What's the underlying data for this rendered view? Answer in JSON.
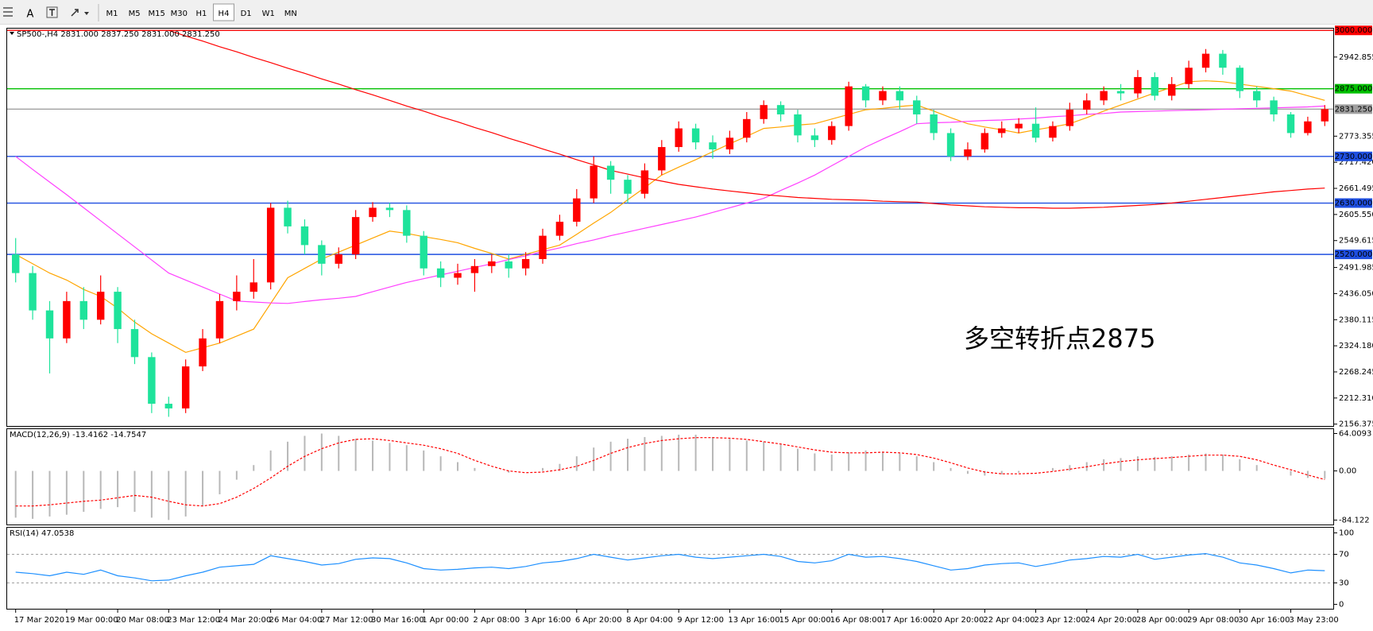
{
  "toolbar": {
    "tools": [
      "A"
    ],
    "timeframes": [
      "M1",
      "M5",
      "M15",
      "M30",
      "H1",
      "H4",
      "D1",
      "W1",
      "MN"
    ],
    "active_timeframe": "H4"
  },
  "chart_data": [
    {
      "type": "candlestick",
      "title": "SP500-,H4  2831.000 2837.250 2831.000 2831.250",
      "annotation": "多空转折点2875",
      "annotation_color": "#ff0000",
      "up_color": "#ff0000",
      "down_color": "#1ee39b",
      "categories": [
        "17 Mar 2020",
        null,
        null,
        "19 Mar 00:00",
        null,
        null,
        "20 Mar 08:00",
        null,
        null,
        "23 Mar 12:00",
        null,
        null,
        "24 Mar 20:00",
        null,
        null,
        "26 Mar 04:00",
        null,
        null,
        "27 Mar 12:00",
        null,
        null,
        "30 Mar 16:00",
        null,
        null,
        "1 Apr 00:00",
        null,
        null,
        "2 Apr 08:00",
        null,
        null,
        "3 Apr 16:00",
        null,
        null,
        "6 Apr 20:00",
        null,
        null,
        "8 Apr 04:00",
        null,
        null,
        "9 Apr 12:00",
        null,
        null,
        "13 Apr 16:00",
        null,
        null,
        "15 Apr 00:00",
        null,
        null,
        "16 Apr 08:00",
        null,
        null,
        "17 Apr 16:00",
        null,
        null,
        "20 Apr 20:00",
        null,
        null,
        "22 Apr 04:00",
        null,
        null,
        "23 Apr 12:00",
        null,
        null,
        "24 Apr 20:00",
        null,
        null,
        "28 Apr 00:00",
        null,
        null,
        "29 Apr 08:00",
        null,
        null,
        "30 Apr 16:00",
        null,
        null,
        "3 May 23:00",
        null,
        null
      ],
      "open": [
        2520,
        2480,
        2400,
        2340,
        2420,
        2380,
        2440,
        2360,
        2300,
        2200,
        2190,
        2280,
        2340,
        2420,
        2440,
        2460,
        2620,
        2580,
        2540,
        2500,
        2520,
        2600,
        2620,
        2615,
        2560,
        2490,
        2470,
        2480,
        2495,
        2505,
        2490,
        2510,
        2560,
        2590,
        2640,
        2710,
        2680,
        2650,
        2700,
        2750,
        2790,
        2760,
        2745,
        2770,
        2810,
        2840,
        2820,
        2775,
        2765,
        2795,
        2880,
        2850,
        2870,
        2850,
        2820,
        2780,
        2730,
        2745,
        2780,
        2790,
        2800,
        2770,
        2795,
        2830,
        2850,
        2870,
        2865,
        2900,
        2860,
        2885,
        2920,
        2950,
        2920,
        2870,
        2850,
        2820,
        2780,
        2805
      ],
      "high": [
        2555,
        2495,
        2420,
        2440,
        2450,
        2475,
        2450,
        2380,
        2310,
        2215,
        2295,
        2360,
        2435,
        2475,
        2510,
        2630,
        2635,
        2595,
        2550,
        2535,
        2615,
        2632,
        2630,
        2625,
        2570,
        2505,
        2500,
        2510,
        2520,
        2520,
        2525,
        2575,
        2605,
        2660,
        2730,
        2720,
        2690,
        2715,
        2765,
        2805,
        2800,
        2775,
        2785,
        2825,
        2850,
        2848,
        2830,
        2790,
        2805,
        2890,
        2885,
        2880,
        2880,
        2860,
        2830,
        2790,
        2760,
        2790,
        2805,
        2812,
        2835,
        2805,
        2845,
        2865,
        2880,
        2885,
        2915,
        2910,
        2900,
        2935,
        2960,
        2958,
        2925,
        2880,
        2858,
        2825,
        2815,
        2840
      ],
      "low": [
        2460,
        2380,
        2265,
        2330,
        2360,
        2370,
        2330,
        2285,
        2180,
        2172,
        2180,
        2270,
        2330,
        2400,
        2425,
        2445,
        2565,
        2520,
        2475,
        2490,
        2510,
        2590,
        2600,
        2545,
        2475,
        2450,
        2455,
        2440,
        2480,
        2470,
        2475,
        2500,
        2550,
        2580,
        2630,
        2650,
        2630,
        2640,
        2690,
        2740,
        2745,
        2725,
        2735,
        2760,
        2800,
        2805,
        2760,
        2750,
        2755,
        2785,
        2835,
        2840,
        2830,
        2800,
        2765,
        2720,
        2722,
        2738,
        2770,
        2780,
        2760,
        2762,
        2785,
        2820,
        2840,
        2850,
        2855,
        2850,
        2850,
        2875,
        2910,
        2905,
        2855,
        2835,
        2805,
        2770,
        2775,
        2795
      ],
      "close": [
        2480,
        2400,
        2340,
        2420,
        2380,
        2440,
        2360,
        2300,
        2200,
        2190,
        2280,
        2340,
        2420,
        2440,
        2460,
        2620,
        2580,
        2540,
        2500,
        2520,
        2600,
        2620,
        2615,
        2560,
        2490,
        2470,
        2480,
        2495,
        2505,
        2490,
        2510,
        2560,
        2590,
        2640,
        2710,
        2680,
        2650,
        2700,
        2750,
        2790,
        2760,
        2745,
        2770,
        2810,
        2840,
        2820,
        2775,
        2765,
        2795,
        2880,
        2850,
        2870,
        2850,
        2820,
        2780,
        2730,
        2745,
        2780,
        2790,
        2800,
        2770,
        2795,
        2830,
        2850,
        2870,
        2865,
        2900,
        2860,
        2885,
        2920,
        2950,
        2920,
        2870,
        2850,
        2820,
        2780,
        2805,
        2831.25
      ],
      "lines": [
        {
          "color": "#ffa500",
          "values": [
            2520,
            2500,
            2480,
            2465,
            2445,
            2430,
            2405,
            2375,
            2350,
            2330,
            2310,
            2320,
            2330,
            2345,
            2360,
            2415,
            2470,
            2490,
            2510,
            2525,
            2540,
            2555,
            2570,
            2565,
            2558,
            2552,
            2545,
            2533,
            2522,
            2510,
            2520,
            2530,
            2540,
            2563,
            2587,
            2610,
            2637,
            2663,
            2690,
            2707,
            2723,
            2740,
            2757,
            2773,
            2790,
            2793,
            2797,
            2800,
            2810,
            2820,
            2830,
            2833,
            2837,
            2840,
            2827,
            2813,
            2800,
            2793,
            2787,
            2780,
            2787,
            2793,
            2800,
            2813,
            2827,
            2840,
            2853,
            2866,
            2878,
            2890,
            2892,
            2890,
            2885,
            2880,
            2875,
            2870,
            2860,
            2850
          ]
        },
        {
          "color": "#ff40ff",
          "values": [
            2730,
            2702,
            2675,
            2648,
            2620,
            2592,
            2564,
            2536,
            2508,
            2480,
            2465,
            2450,
            2435,
            2420,
            2418,
            2416,
            2415,
            2419,
            2423,
            2426,
            2430,
            2440,
            2450,
            2460,
            2468,
            2476,
            2484,
            2492,
            2500,
            2509,
            2517,
            2526,
            2534,
            2543,
            2551,
            2560,
            2568,
            2576,
            2584,
            2592,
            2600,
            2610,
            2620,
            2630,
            2640,
            2657,
            2673,
            2690,
            2710,
            2730,
            2750,
            2767,
            2783,
            2800,
            2802,
            2803,
            2805,
            2807,
            2808,
            2810,
            2812,
            2815,
            2817,
            2820,
            2822,
            2825,
            2826,
            2827,
            2828,
            2829,
            2830,
            2831,
            2832,
            2833,
            2834,
            2835,
            2836,
            2838
          ]
        },
        {
          "color": "#ff0000",
          "values": [
            null,
            null,
            null,
            null,
            null,
            null,
            null,
            null,
            null,
            3000,
            2988,
            2977,
            2965,
            2954,
            2942,
            2931,
            2919,
            2908,
            2896,
            2885,
            2873,
            2862,
            2850,
            2838,
            2827,
            2815,
            2804,
            2792,
            2781,
            2769,
            2758,
            2746,
            2735,
            2723,
            2712,
            2700,
            2692,
            2684,
            2677,
            2670,
            2665,
            2660,
            2656,
            2652,
            2648,
            2645,
            2642,
            2640,
            2638,
            2637,
            2636,
            2634,
            2633,
            2632,
            2629,
            2626,
            2624,
            2622,
            2621,
            2620,
            2620,
            2619,
            2619,
            2620,
            2621,
            2623,
            2625,
            2627,
            2630,
            2634,
            2638,
            2642,
            2646,
            2650,
            2654,
            2657,
            2660,
            2662
          ]
        }
      ],
      "levels": [
        {
          "value": 3000,
          "label": "3000.000",
          "color": "#ff0000",
          "label_color": "#ffffff"
        },
        {
          "value": 2875,
          "label": "2875.000",
          "color": "#00c000",
          "label_color": "#ffffff"
        },
        {
          "value": 2831.25,
          "label": "2831.250",
          "color": "#a0a0a0",
          "label_color": "#000000"
        },
        {
          "value": 2730,
          "label": "2730.000",
          "color": "#1f4fe0",
          "label_color": "#ffffff"
        },
        {
          "value": 2630,
          "label": "2630.000",
          "color": "#1f4fe0",
          "label_color": "#ffffff"
        },
        {
          "value": 2520,
          "label": "2520.000",
          "color": "#1f4fe0",
          "label_color": "#ffffff"
        }
      ],
      "ylim": [
        2150.7,
        3003.8
      ],
      "yticks": [
        {
          "value": 2942.855,
          "label": "2942.855"
        },
        {
          "value": 2773.355,
          "label": "2773.355"
        },
        {
          "value": 2717.42,
          "label": "2717.420"
        },
        {
          "value": 2661.495,
          "label": "2661.495"
        },
        {
          "value": 2605.55,
          "label": "2605.550"
        },
        {
          "value": 2549.615,
          "label": "2549.615"
        },
        {
          "value": 2491.985,
          "label": "2491.985"
        },
        {
          "value": 2436.05,
          "label": "2436.050"
        },
        {
          "value": 2380.115,
          "label": "2380.115"
        },
        {
          "value": 2324.18,
          "label": "2324.180"
        },
        {
          "value": 2268.245,
          "label": "2268.245"
        },
        {
          "value": 2212.31,
          "label": "2212.310"
        },
        {
          "value": 2156.375,
          "label": "2156.375"
        }
      ]
    },
    {
      "type": "macd",
      "title": "MACD(12,26,9) -13.4162 -14.7547",
      "series": [
        {
          "color": "#b8b8b8",
          "values": [
            -80,
            -82,
            -78,
            -75,
            -70,
            -65,
            -62,
            -70,
            -80,
            -84,
            -78,
            -60,
            -40,
            -15,
            10,
            35,
            50,
            60,
            64,
            60,
            55,
            52,
            48,
            44,
            35,
            25,
            15,
            5,
            0,
            -3,
            0,
            5,
            12,
            25,
            40,
            50,
            55,
            58,
            60,
            62,
            62,
            58,
            55,
            52,
            50,
            45,
            38,
            30,
            28,
            32,
            35,
            33,
            30,
            25,
            15,
            5,
            -5,
            -8,
            -6,
            -3,
            0,
            5,
            10,
            15,
            20,
            22,
            25,
            24,
            25,
            28,
            30,
            28,
            20,
            10,
            0,
            -8,
            -12,
            -13.4162
          ]
        },
        {
          "color": "#ff0000",
          "values": [
            -60,
            -60,
            -58,
            -55,
            -52,
            -50,
            -46,
            -42,
            -45,
            -52,
            -58,
            -60,
            -56,
            -45,
            -30,
            -12,
            8,
            25,
            38,
            48,
            54,
            55,
            52,
            48,
            44,
            38,
            30,
            18,
            8,
            0,
            -3,
            -2,
            2,
            8,
            18,
            30,
            40,
            47,
            52,
            55,
            57,
            57,
            56,
            54,
            50,
            46,
            41,
            36,
            32,
            31,
            31,
            32,
            31,
            28,
            22,
            14,
            5,
            -2,
            -5,
            -5,
            -4,
            -1,
            3,
            7,
            12,
            16,
            19,
            21,
            23,
            25,
            27,
            27,
            25,
            19,
            10,
            2,
            -7,
            -14.7547
          ]
        }
      ],
      "ylim": [
        -93.1,
        71.5
      ],
      "yticks": [
        64.0093,
        {
          "value": 0,
          "label": "0.00"
        },
        -84.122
      ]
    },
    {
      "type": "line",
      "title": "RSI(14) 47.0538",
      "color": "#1e90ff",
      "values": [
        45,
        43,
        40,
        45,
        42,
        48,
        40,
        37,
        33,
        34,
        40,
        45,
        52,
        54,
        56,
        68,
        64,
        60,
        55,
        57,
        63,
        65,
        64,
        58,
        50,
        48,
        49,
        51,
        52,
        50,
        53,
        58,
        60,
        64,
        70,
        66,
        62,
        65,
        68,
        70,
        66,
        64,
        66,
        68,
        70,
        67,
        60,
        58,
        61,
        70,
        66,
        67,
        64,
        60,
        54,
        48,
        50,
        55,
        57,
        58,
        53,
        57,
        62,
        64,
        67,
        66,
        70,
        63,
        66,
        69,
        71,
        66,
        58,
        55,
        50,
        44,
        48,
        47.0538
      ],
      "levels": [
        70,
        30
      ],
      "ylim": [
        -7.3,
        107.3
      ],
      "yticks": [
        100,
        70,
        30,
        0
      ]
    }
  ]
}
